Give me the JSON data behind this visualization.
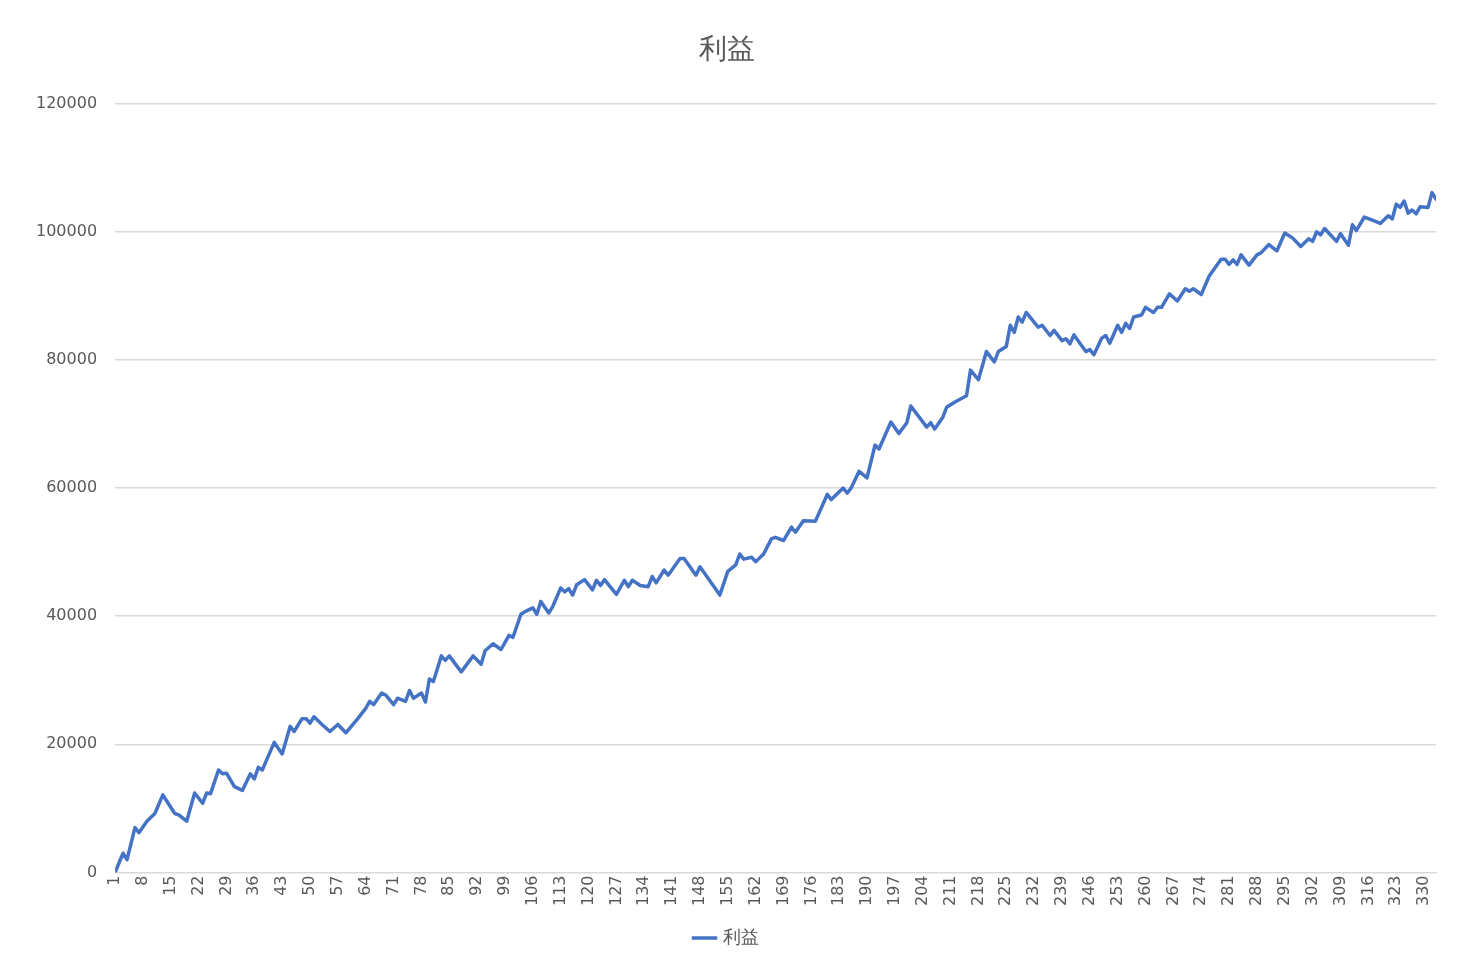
{
  "chart_data": {
    "type": "line",
    "title": "利益",
    "xlim": [
      1,
      333
    ],
    "xticks": [
      1,
      8,
      15,
      22,
      29,
      36,
      43,
      50,
      57,
      64,
      71,
      78,
      85,
      92,
      99,
      106,
      113,
      120,
      127,
      134,
      141,
      148,
      155,
      162,
      169,
      176,
      183,
      190,
      197,
      204,
      211,
      218,
      225,
      232,
      239,
      246,
      253,
      260,
      267,
      274,
      281,
      288,
      295,
      302,
      309,
      316,
      323,
      330
    ],
    "ylim": [
      0,
      120000
    ],
    "yticks": [
      0,
      20000,
      40000,
      60000,
      80000,
      100000,
      120000
    ],
    "grid": "y",
    "legend": "bottom",
    "marker": "none",
    "line_style": "solid",
    "series": [
      {
        "name": "利益",
        "color": "#4472c4",
        "x": [
          1,
          3,
          4,
          6,
          7,
          9,
          11,
          13,
          16,
          17,
          19,
          21,
          23,
          24,
          25,
          27,
          28,
          29,
          31,
          33,
          35,
          36,
          37,
          38,
          41,
          43,
          45,
          46,
          48,
          49,
          50,
          51,
          53,
          55,
          57,
          59,
          62,
          64,
          65,
          66,
          68,
          69,
          71,
          72,
          74,
          75,
          76,
          78,
          79,
          80,
          81,
          83,
          84,
          85,
          88,
          91,
          93,
          94,
          96,
          98,
          100,
          101,
          103,
          104,
          106,
          107,
          108,
          110,
          111,
          113,
          114,
          115,
          116,
          117,
          119,
          121,
          122,
          123,
          124,
          127,
          129,
          130,
          131,
          133,
          135,
          136,
          137,
          139,
          140,
          143,
          144,
          147,
          148,
          153,
          155,
          157,
          158,
          159,
          161,
          162,
          164,
          166,
          167,
          169,
          171,
          172,
          174,
          177,
          180,
          181,
          184,
          185,
          186,
          188,
          190,
          192,
          193,
          196,
          198,
          200,
          201,
          205,
          206,
          207,
          209,
          210,
          212,
          215,
          216,
          218,
          220,
          222,
          223,
          225,
          226,
          227,
          228,
          229,
          230,
          233,
          234,
          236,
          237,
          239,
          240,
          241,
          242,
          245,
          246,
          247,
          249,
          250,
          251,
          253,
          254,
          255,
          256,
          257,
          259,
          260,
          262,
          263,
          264,
          266,
          268,
          270,
          271,
          272,
          274,
          276,
          279,
          280,
          281,
          282,
          283,
          284,
          286,
          288,
          289,
          291,
          293,
          295,
          297,
          299,
          301,
          302,
          303,
          304,
          305,
          308,
          309,
          311,
          312,
          313,
          315,
          317,
          319,
          321,
          322,
          323,
          324,
          325,
          326,
          327,
          328,
          329,
          331,
          332,
          333
        ],
        "values": [
          0,
          3000,
          2000,
          7000,
          6200,
          8000,
          9200,
          12100,
          9200,
          9000,
          8000,
          12400,
          10800,
          12400,
          12300,
          16000,
          15400,
          15500,
          13400,
          12800,
          15400,
          14600,
          16400,
          16000,
          20300,
          18500,
          22800,
          22000,
          24000,
          24000,
          23300,
          24300,
          23100,
          22000,
          23100,
          21800,
          24000,
          25600,
          26700,
          26200,
          28000,
          27700,
          26200,
          27200,
          26700,
          28400,
          27200,
          28000,
          26600,
          30200,
          29800,
          33800,
          33100,
          33800,
          31300,
          33800,
          32500,
          34600,
          35700,
          34800,
          37000,
          36700,
          40300,
          40700,
          41300,
          40300,
          42300,
          40500,
          41500,
          44400,
          43800,
          44300,
          43300,
          44900,
          45700,
          44100,
          45600,
          44800,
          45700,
          43400,
          45600,
          44600,
          45600,
          44800,
          44600,
          46200,
          45200,
          47200,
          46400,
          49000,
          49000,
          46400,
          47700,
          43300,
          47000,
          48000,
          49700,
          48900,
          49200,
          48500,
          49700,
          52100,
          52300,
          51800,
          53900,
          53100,
          54900,
          54800,
          59000,
          58200,
          60000,
          59200,
          60000,
          62600,
          61600,
          66700,
          66100,
          70300,
          68500,
          70200,
          72800,
          69500,
          70200,
          69200,
          71000,
          72600,
          73400,
          74400,
          78400,
          76900,
          81300,
          79700,
          81300,
          82100,
          85400,
          84300,
          86700,
          85900,
          87400,
          85100,
          85400,
          83800,
          84600,
          83000,
          83300,
          82500,
          83900,
          81300,
          81600,
          80800,
          83400,
          83800,
          82600,
          85400,
          84300,
          85700,
          84900,
          86700,
          87000,
          88200,
          87400,
          88200,
          88200,
          90300,
          89200,
          91100,
          90700,
          91100,
          90200,
          93100,
          95700,
          95700,
          94900,
          95600,
          94900,
          96400,
          94800,
          96400,
          96700,
          98000,
          97000,
          99800,
          99000,
          97700,
          98900,
          98500,
          100000,
          99500,
          100500,
          98500,
          99700,
          97900,
          101100,
          100200,
          102300,
          101800,
          101300,
          102500,
          102000,
          104300,
          103800,
          104800,
          102900,
          103400,
          102800,
          103900,
          103800,
          106100,
          105100
        ]
      }
    ]
  }
}
